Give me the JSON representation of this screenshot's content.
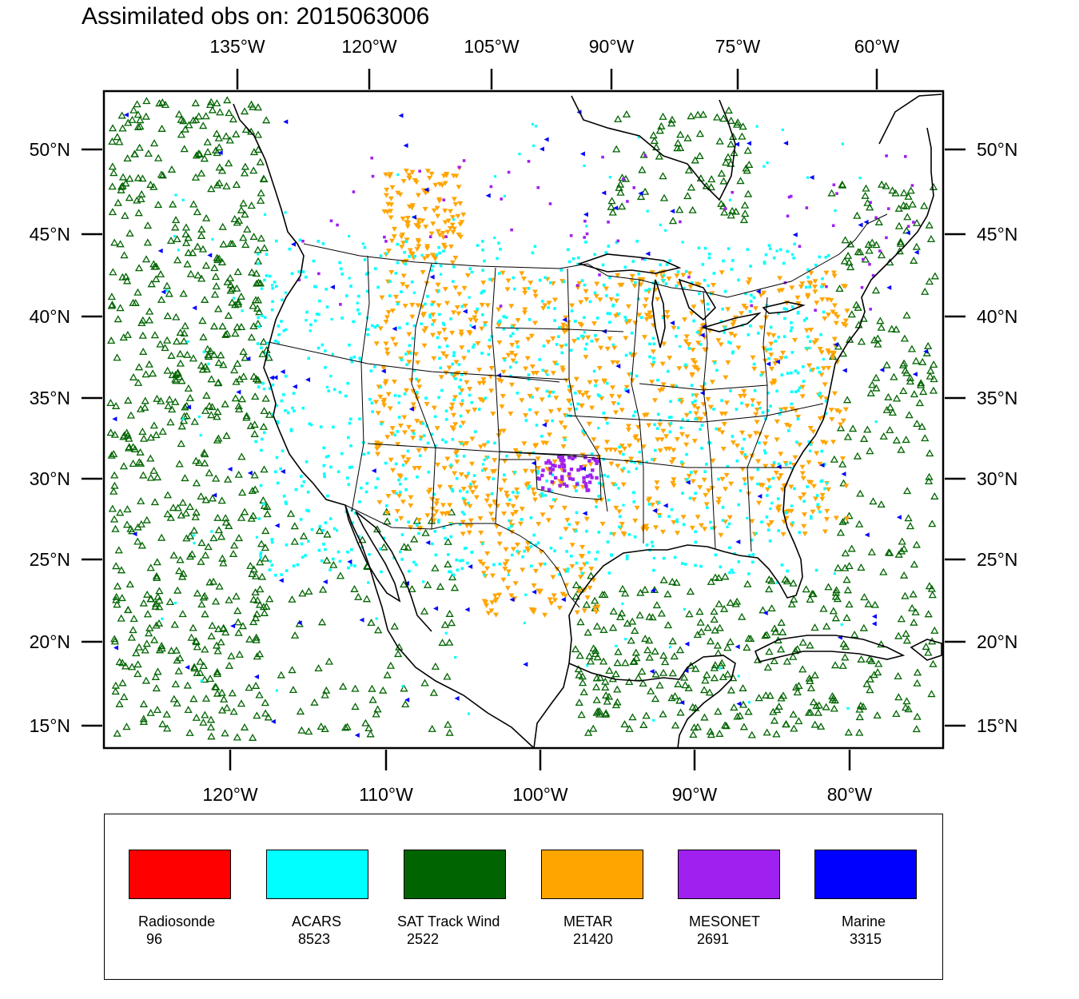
{
  "title": "Assimilated obs on: 2015063006",
  "axes": {
    "top_lon_labels": [
      "135°W",
      "120°W",
      "105°W",
      "90°W",
      "75°W",
      "60°W"
    ],
    "bottom_lon_labels": [
      "120°W",
      "110°W",
      "100°W",
      "90°W",
      "80°W"
    ],
    "lat_labels": [
      "50°N",
      "45°N",
      "40°N",
      "35°N",
      "30°N",
      "25°N",
      "20°N",
      "15°N"
    ]
  },
  "legend": [
    {
      "label": "Radiosonde",
      "count": "96",
      "color": "#ff0000"
    },
    {
      "label": "ACARS",
      "count": "8523",
      "color": "#00ffff"
    },
    {
      "label": "SAT Track Wind",
      "count": "2522",
      "color": "#006400"
    },
    {
      "label": "METAR",
      "count": "21420",
      "color": "#ffa500"
    },
    {
      "label": "MESONET",
      "count": "2691",
      "color": "#a020f0"
    },
    {
      "label": "Marine",
      "count": "3315",
      "color": "#0000ff"
    }
  ],
  "map_colors": {
    "frame": "#000000",
    "coast": "#000000"
  }
}
